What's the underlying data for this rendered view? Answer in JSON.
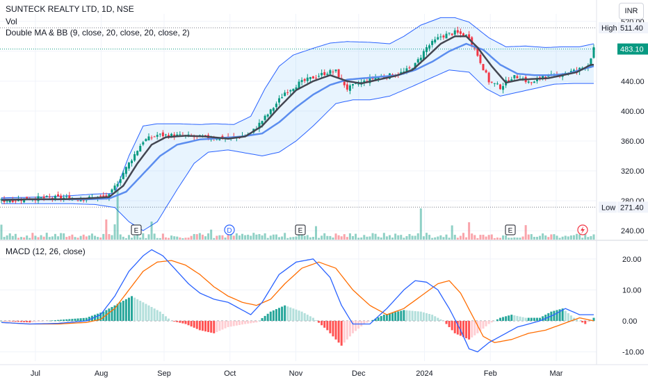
{
  "header": {
    "title": "SUNTECK REALTY LTD, 1D, NSE",
    "vol_label": "Vol",
    "bb_label": "Double MA & BB (9, close, 20, close, 20, close, 2)",
    "macd_label": "MACD (12, 26, close)",
    "currency": "INR"
  },
  "chart_data": [
    {
      "type": "candlestick",
      "title": "SUNTECK REALTY LTD, 1D, NSE",
      "y_ticks": [
        "520.00",
        "480.00",
        "440.00",
        "400.00",
        "360.00",
        "320.00",
        "280.00",
        "240.00"
      ],
      "ylim": [
        228,
        530
      ],
      "x_ticks": [
        "Jul",
        "Aug",
        "Sep",
        "Oct",
        "Nov",
        "Dec",
        "2024",
        "Feb",
        "Mar"
      ],
      "price_labels": {
        "high_label": "High",
        "high_value": "511.40",
        "low_label": "Low",
        "low_value": "271.40",
        "last_value": "483.10"
      },
      "path_key": [
        [
          0,
          280
        ],
        [
          10,
          283
        ],
        [
          20,
          284
        ],
        [
          30,
          283
        ],
        [
          33,
          284
        ],
        [
          38,
          286
        ],
        [
          45,
          330
        ],
        [
          50,
          360
        ],
        [
          55,
          368
        ],
        [
          62,
          367
        ],
        [
          70,
          365
        ],
        [
          78,
          364
        ],
        [
          82,
          364
        ],
        [
          88,
          370
        ],
        [
          95,
          400
        ],
        [
          100,
          425
        ],
        [
          105,
          437
        ],
        [
          110,
          445
        ],
        [
          115,
          452
        ],
        [
          118,
          453
        ],
        [
          122,
          430
        ],
        [
          127,
          438
        ],
        [
          132,
          445
        ],
        [
          138,
          448
        ],
        [
          142,
          452
        ],
        [
          146,
          462
        ],
        [
          150,
          485
        ],
        [
          155,
          500
        ],
        [
          160,
          505
        ],
        [
          165,
          500
        ],
        [
          168,
          475
        ],
        [
          172,
          440
        ],
        [
          176,
          432
        ],
        [
          180,
          445
        ],
        [
          183,
          446
        ],
        [
          186,
          438
        ],
        [
          188,
          438
        ],
        [
          191,
          448
        ],
        [
          195,
          446
        ],
        [
          198,
          451
        ],
        [
          203,
          454
        ],
        [
          207,
          462
        ],
        [
          209,
          483
        ]
      ],
      "ma9_key": [
        [
          0,
          281
        ],
        [
          10,
          282
        ],
        [
          20,
          282
        ],
        [
          30,
          283
        ],
        [
          38,
          285
        ],
        [
          43,
          300
        ],
        [
          48,
          330
        ],
        [
          53,
          355
        ],
        [
          58,
          365
        ],
        [
          65,
          367
        ],
        [
          72,
          366
        ],
        [
          80,
          363
        ],
        [
          86,
          366
        ],
        [
          92,
          380
        ],
        [
          98,
          405
        ],
        [
          104,
          428
        ],
        [
          110,
          440
        ],
        [
          116,
          448
        ],
        [
          122,
          440
        ],
        [
          127,
          437
        ],
        [
          133,
          442
        ],
        [
          139,
          447
        ],
        [
          145,
          455
        ],
        [
          150,
          472
        ],
        [
          155,
          490
        ],
        [
          160,
          500
        ],
        [
          164,
          500
        ],
        [
          168,
          485
        ],
        [
          173,
          460
        ],
        [
          178,
          438
        ],
        [
          183,
          442
        ],
        [
          188,
          443
        ],
        [
          193,
          444
        ],
        [
          198,
          448
        ],
        [
          203,
          452
        ],
        [
          208,
          462
        ]
      ],
      "ma20_key": [
        [
          0,
          282
        ],
        [
          10,
          282
        ],
        [
          20,
          282
        ],
        [
          30,
          282
        ],
        [
          38,
          283
        ],
        [
          44,
          292
        ],
        [
          50,
          316
        ],
        [
          56,
          340
        ],
        [
          62,
          355
        ],
        [
          70,
          362
        ],
        [
          78,
          364
        ],
        [
          85,
          366
        ],
        [
          92,
          370
        ],
        [
          98,
          385
        ],
        [
          104,
          405
        ],
        [
          110,
          422
        ],
        [
          116,
          435
        ],
        [
          122,
          442
        ],
        [
          128,
          444
        ],
        [
          134,
          446
        ],
        [
          140,
          448
        ],
        [
          146,
          455
        ],
        [
          152,
          466
        ],
        [
          158,
          480
        ],
        [
          164,
          490
        ],
        [
          170,
          482
        ],
        [
          176,
          462
        ],
        [
          182,
          450
        ],
        [
          188,
          448
        ],
        [
          194,
          448
        ],
        [
          200,
          450
        ],
        [
          205,
          456
        ],
        [
          209,
          460
        ]
      ],
      "bb_upper_key": [
        [
          0,
          284
        ],
        [
          15,
          285
        ],
        [
          25,
          287
        ],
        [
          33,
          289
        ],
        [
          40,
          290
        ],
        [
          45,
          340
        ],
        [
          50,
          380
        ],
        [
          55,
          383
        ],
        [
          62,
          383
        ],
        [
          70,
          382
        ],
        [
          75,
          383
        ],
        [
          82,
          382
        ],
        [
          88,
          393
        ],
        [
          93,
          430
        ],
        [
          98,
          460
        ],
        [
          103,
          475
        ],
        [
          110,
          484
        ],
        [
          116,
          491
        ],
        [
          122,
          493
        ],
        [
          130,
          492
        ],
        [
          137,
          490
        ],
        [
          142,
          500
        ],
        [
          148,
          515
        ],
        [
          155,
          525
        ],
        [
          160,
          525
        ],
        [
          165,
          519
        ],
        [
          172,
          498
        ],
        [
          178,
          486
        ],
        [
          185,
          487
        ],
        [
          192,
          485
        ],
        [
          198,
          486
        ],
        [
          204,
          486
        ],
        [
          209,
          490
        ]
      ],
      "bb_lower_key": [
        [
          0,
          276
        ],
        [
          15,
          276
        ],
        [
          25,
          276
        ],
        [
          33,
          275
        ],
        [
          40,
          271
        ],
        [
          45,
          252
        ],
        [
          50,
          240
        ],
        [
          55,
          252
        ],
        [
          62,
          295
        ],
        [
          68,
          330
        ],
        [
          73,
          345
        ],
        [
          80,
          348
        ],
        [
          86,
          344
        ],
        [
          92,
          340
        ],
        [
          98,
          345
        ],
        [
          104,
          360
        ],
        [
          110,
          380
        ],
        [
          118,
          410
        ],
        [
          124,
          415
        ],
        [
          130,
          415
        ],
        [
          137,
          420
        ],
        [
          145,
          433
        ],
        [
          152,
          445
        ],
        [
          158,
          455
        ],
        [
          165,
          452
        ],
        [
          171,
          430
        ],
        [
          176,
          420
        ],
        [
          182,
          425
        ],
        [
          188,
          430
        ],
        [
          195,
          436
        ],
        [
          202,
          437
        ],
        [
          209,
          437
        ]
      ],
      "event_markers": [
        "E",
        "D",
        "E",
        "E"
      ]
    },
    {
      "type": "line",
      "title": "MACD (12, 26, close)",
      "y_ticks": [
        "20.00",
        "10.00",
        "0.00",
        "-10.00"
      ],
      "ylim": [
        -13,
        24
      ],
      "macd_key": [
        [
          0,
          -0.5
        ],
        [
          10,
          -1
        ],
        [
          20,
          -0.8
        ],
        [
          30,
          0
        ],
        [
          35,
          2
        ],
        [
          40,
          8
        ],
        [
          45,
          16
        ],
        [
          50,
          21
        ],
        [
          53,
          23
        ],
        [
          57,
          21
        ],
        [
          62,
          16
        ],
        [
          66,
          12
        ],
        [
          70,
          9
        ],
        [
          75,
          7
        ],
        [
          80,
          6
        ],
        [
          84,
          4
        ],
        [
          88,
          2
        ],
        [
          92,
          6
        ],
        [
          98,
          15
        ],
        [
          104,
          19
        ],
        [
          110,
          20
        ],
        [
          116,
          14
        ],
        [
          120,
          5
        ],
        [
          124,
          -1
        ],
        [
          130,
          -1
        ],
        [
          136,
          4
        ],
        [
          142,
          10
        ],
        [
          146,
          13
        ],
        [
          150,
          12.5
        ],
        [
          154,
          10
        ],
        [
          158,
          4
        ],
        [
          162,
          -3
        ],
        [
          165,
          -9
        ],
        [
          168,
          -10
        ],
        [
          172,
          -7
        ],
        [
          178,
          -4
        ],
        [
          182,
          -2
        ],
        [
          186,
          -1
        ],
        [
          190,
          0
        ],
        [
          195,
          2
        ],
        [
          199,
          4
        ],
        [
          204,
          2
        ],
        [
          209,
          2
        ]
      ],
      "signal_key": [
        [
          0,
          -0.5
        ],
        [
          10,
          -1
        ],
        [
          20,
          -1
        ],
        [
          30,
          -0.5
        ],
        [
          35,
          0.5
        ],
        [
          40,
          4
        ],
        [
          45,
          10
        ],
        [
          50,
          16
        ],
        [
          55,
          19
        ],
        [
          60,
          19.5
        ],
        [
          65,
          18
        ],
        [
          70,
          15
        ],
        [
          75,
          11
        ],
        [
          80,
          8
        ],
        [
          85,
          6
        ],
        [
          90,
          5
        ],
        [
          95,
          7
        ],
        [
          100,
          12
        ],
        [
          106,
          17
        ],
        [
          112,
          19
        ],
        [
          118,
          17
        ],
        [
          124,
          10
        ],
        [
          130,
          5
        ],
        [
          136,
          2
        ],
        [
          142,
          4
        ],
        [
          148,
          8
        ],
        [
          154,
          12
        ],
        [
          158,
          13
        ],
        [
          162,
          9
        ],
        [
          166,
          2
        ],
        [
          170,
          -5
        ],
        [
          174,
          -7
        ],
        [
          180,
          -6
        ],
        [
          186,
          -4
        ],
        [
          192,
          -3
        ],
        [
          198,
          -1
        ],
        [
          204,
          1
        ],
        [
          209,
          0
        ]
      ],
      "histogram_key": [
        [
          0,
          0
        ],
        [
          10,
          -0.5
        ],
        [
          20,
          0.3
        ],
        [
          30,
          1
        ],
        [
          36,
          3
        ],
        [
          42,
          6
        ],
        [
          46,
          8
        ],
        [
          50,
          6
        ],
        [
          56,
          3
        ],
        [
          60,
          0
        ],
        [
          65,
          -1
        ],
        [
          70,
          -3
        ],
        [
          75,
          -4
        ],
        [
          80,
          -2
        ],
        [
          86,
          -1
        ],
        [
          90,
          -0.5
        ],
        [
          95,
          3
        ],
        [
          100,
          5
        ],
        [
          106,
          3
        ],
        [
          110,
          1
        ],
        [
          115,
          -3
        ],
        [
          120,
          -8
        ],
        [
          124,
          -4
        ],
        [
          128,
          -1
        ],
        [
          135,
          2
        ],
        [
          142,
          3.5
        ],
        [
          148,
          3
        ],
        [
          152,
          2
        ],
        [
          156,
          0
        ],
        [
          160,
          -4
        ],
        [
          165,
          -6
        ],
        [
          168,
          -4
        ],
        [
          172,
          -1
        ],
        [
          176,
          1
        ],
        [
          180,
          2
        ],
        [
          185,
          1
        ],
        [
          190,
          1
        ],
        [
          194,
          3
        ],
        [
          198,
          4
        ],
        [
          202,
          1
        ],
        [
          206,
          -1
        ],
        [
          209,
          1
        ]
      ]
    }
  ]
}
